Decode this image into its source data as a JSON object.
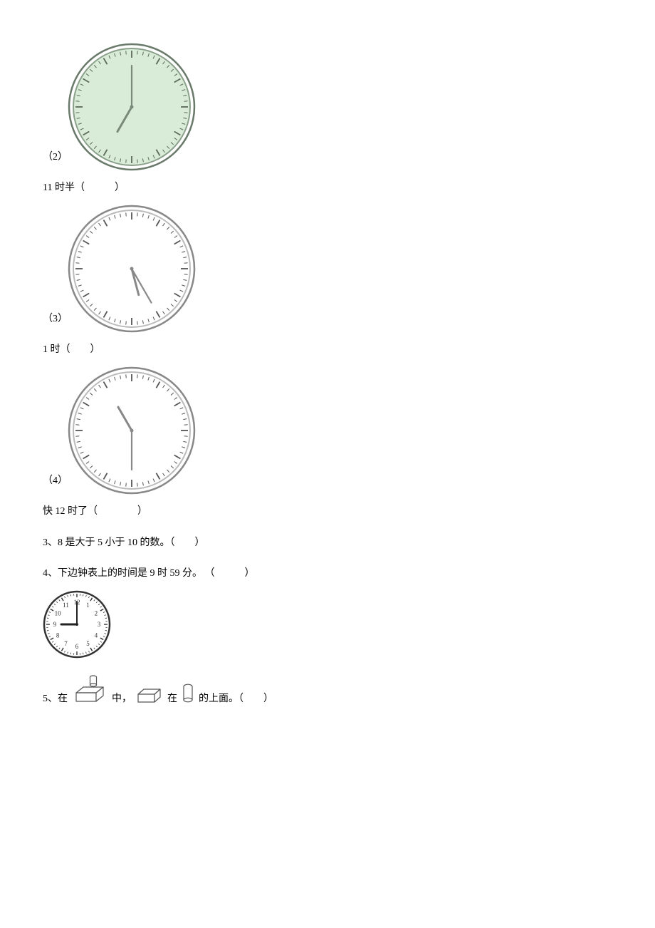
{
  "clocks": {
    "c2": {
      "diameter": 180,
      "rim_outer": "#6a7a6a",
      "rim_inner": "#8aa08a",
      "face_fill": "#d9ecd7",
      "tick_color": "#5a6a5a",
      "hand_color": "#7a8a7a",
      "minute_angle": 0,
      "hour_angle": 210,
      "minute_len": 58,
      "hour_len": 40,
      "label_text": "（2）",
      "answer_text": "11 时半（　　　）"
    },
    "c3": {
      "diameter": 180,
      "rim_outer": "#888888",
      "rim_inner": "#bbbbbb",
      "face_fill": "#ffffff",
      "tick_color": "#555555",
      "hand_color": "#888888",
      "minute_angle": 150,
      "hour_angle": 165,
      "minute_len": 55,
      "hour_len": 38,
      "label_text": "（3）",
      "answer_text": "1 时（　　）"
    },
    "c4": {
      "diameter": 180,
      "rim_outer": "#888888",
      "rim_inner": "#bbbbbb",
      "face_fill": "#ffffff",
      "tick_color": "#555555",
      "hand_color": "#888888",
      "minute_angle": 180,
      "hour_angle": 330,
      "minute_len": 55,
      "hour_len": 38,
      "label_text": "（4）",
      "answer_text": "快 12 时了（　　　　）"
    }
  },
  "q3_text": "3、8 是大于 5 小于 10 的数。（　　）",
  "q4_text": "4、下边钟表上的时间是 9 时 59 分。 （　　　）",
  "q4_clock": {
    "diameter": 96,
    "rim_color": "#333333",
    "face_fill": "#ffffff",
    "num_color": "#333333",
    "hand_color": "#222222",
    "minute_angle": 0,
    "hour_angle": 270,
    "minute_len": 32,
    "hour_len": 22
  },
  "q5": {
    "prefix": "5、在",
    "mid1": "中，",
    "mid2": "在",
    "suffix": "的上面。（　　）",
    "shape_stroke": "#555555",
    "shape_fill": "#ffffff"
  }
}
